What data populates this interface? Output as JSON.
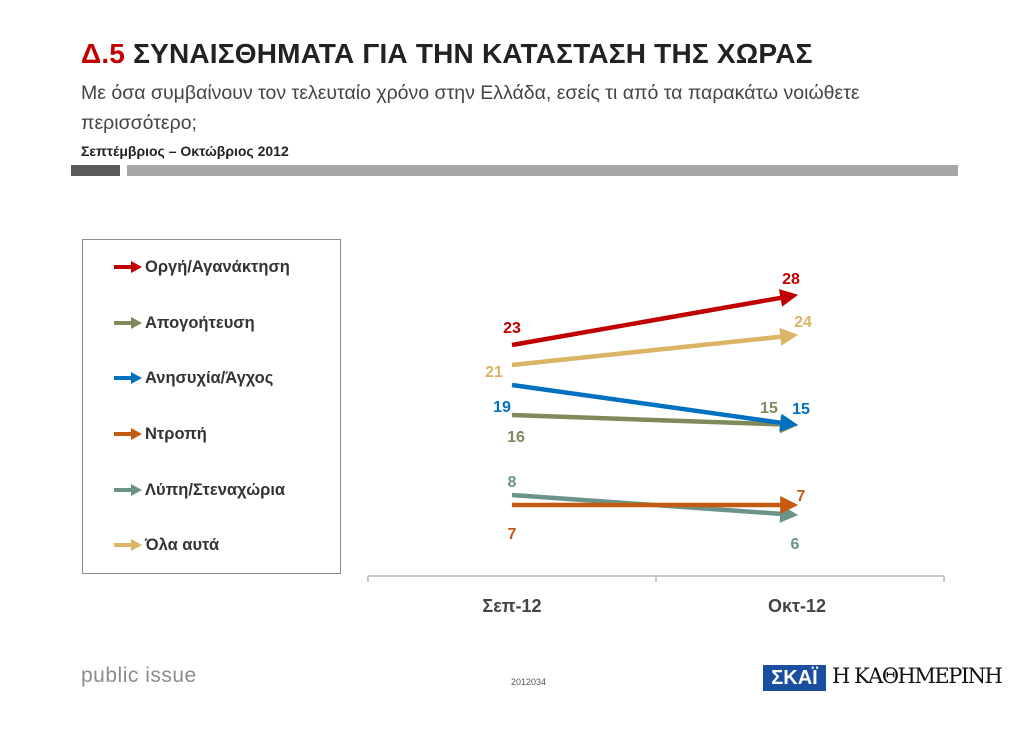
{
  "header": {
    "title_num": "Δ.5",
    "title_text": "ΣΥΝΑΙΣΘΗΜΑΤΑ ΓΙΑ ΤΗΝ ΚΑΤΑΣΤΑΣΗ ΤΗΣ ΧΩΡΑΣ",
    "subtitle": "Με όσα συμβαίνουν τον τελευταίο χρόνο στην Ελλάδα, εσείς τι από τα παρακάτω νοιώθετε περισσότερο;",
    "period": "Σεπτέμβριος – Οκτώβριος 2012"
  },
  "chart_data": {
    "type": "line",
    "categories": [
      "Σεπ-12",
      "Οκτ-12"
    ],
    "ylim": [
      0,
      33
    ],
    "grid": false,
    "legend_position": "left",
    "series": [
      {
        "name": "Οργή/Αγανάκτηση",
        "values": [
          23,
          28
        ],
        "color": "#c00000"
      },
      {
        "name": "Απογοήτευση",
        "values": [
          16,
          15
        ],
        "color": "#7f8a5a"
      },
      {
        "name": "Ανησυχία/Άγχος",
        "values": [
          19,
          15
        ],
        "color": "#0070c0"
      },
      {
        "name": "Ντροπή",
        "values": [
          7,
          7
        ],
        "color": "#c55a11"
      },
      {
        "name": "Λύπη/Στεναχώρια",
        "values": [
          8,
          6
        ],
        "color": "#6a9488"
      },
      {
        "name": "Όλα αυτά",
        "values": [
          21,
          24
        ],
        "color": "#dbb466"
      }
    ]
  },
  "footer": {
    "brand": "public issue",
    "code": "2012034",
    "logo_skai": "ΣΚΑΪ",
    "logo_kathimerini": "Η ΚΑΘΗΜΕΡΙΝΗ"
  }
}
